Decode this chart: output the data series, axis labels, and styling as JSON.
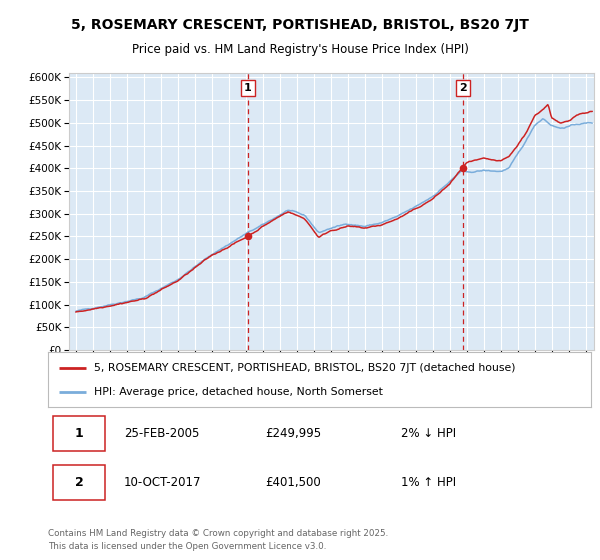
{
  "title": "5, ROSEMARY CRESCENT, PORTISHEAD, BRISTOL, BS20 7JT",
  "subtitle": "Price paid vs. HM Land Registry's House Price Index (HPI)",
  "legend_line1": "5, ROSEMARY CRESCENT, PORTISHEAD, BRISTOL, BS20 7JT (detached house)",
  "legend_line2": "HPI: Average price, detached house, North Somerset",
  "annotation1_label": "1",
  "annotation1_date": "25-FEB-2005",
  "annotation1_price": "£249,995",
  "annotation1_hpi": "2% ↓ HPI",
  "annotation2_label": "2",
  "annotation2_date": "10-OCT-2017",
  "annotation2_price": "£401,500",
  "annotation2_hpi": "1% ↑ HPI",
  "footer": "Contains HM Land Registry data © Crown copyright and database right 2025.\nThis data is licensed under the Open Government Licence v3.0.",
  "ylim": [
    0,
    610000
  ],
  "xlim_start": 1994.6,
  "xlim_end": 2025.5,
  "plot_bg_color": "#dce9f5",
  "grid_color": "#ffffff",
  "sale1_x": 2005.12,
  "sale1_y": 249995,
  "sale2_x": 2017.78,
  "sale2_y": 401500,
  "red_line_color": "#cc2222",
  "blue_line_color": "#7aaddb"
}
